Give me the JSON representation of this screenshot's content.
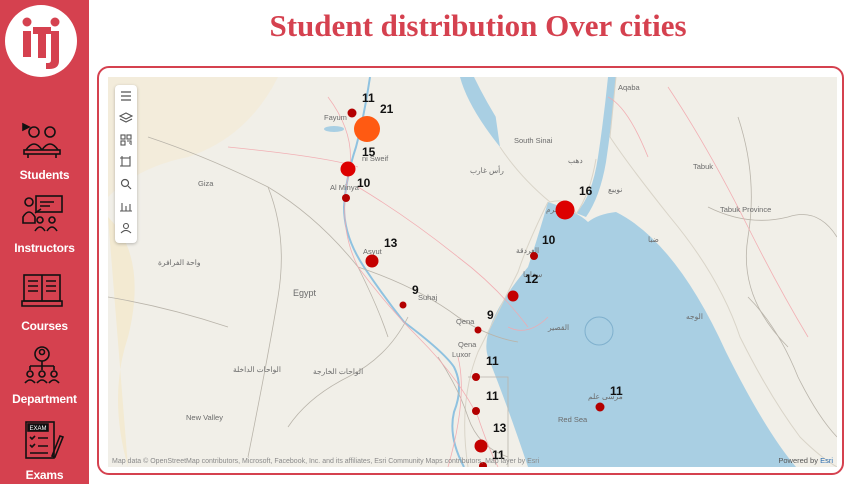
{
  "page": {
    "title": "Student distribution Over cities"
  },
  "sidebar": {
    "logo_icon": "iti-logo",
    "items": [
      {
        "label": "Students",
        "icon": "students-icon"
      },
      {
        "label": "Instructors",
        "icon": "instructors-icon"
      },
      {
        "label": "Courses",
        "icon": "courses-icon"
      },
      {
        "label": "Department",
        "icon": "department-icon"
      },
      {
        "label": "Exams",
        "icon": "exams-icon",
        "icon_text": "EXAM"
      }
    ]
  },
  "map": {
    "toolbar": [
      "menu-icon",
      "layers-icon",
      "qr-icon",
      "select-rectangle-icon",
      "zoom-icon",
      "bar-chart-icon",
      "person-icon"
    ],
    "place_labels": {
      "fayum": "Fayum",
      "beni_suef": "ni Sweif",
      "al_minya": "Al Minya",
      "giza": "Giza",
      "egypt": "Egypt",
      "wahat_farafra": "واحة الفرافرة",
      "asyut": "Asyut",
      "suhaj": "Suhaj",
      "qena": "Qena",
      "qena2": "Qena",
      "luxor": "Luxor",
      "wahat_dakhla": "الواحات الداخلة",
      "wahat_kharga": "الواحات الخارجة",
      "new_valley": "New Valley",
      "aqaba": "Aqaba",
      "south_sinai": "South Sinai",
      "ras_gharib": "رأس غارب",
      "dahab": "دهب",
      "tabuk": "Tabuk",
      "tabuk_province": "Tabuk Province",
      "sharm": "شرم",
      "nuwaiba": "نويبع",
      "ghardaqa": "الغردقة",
      "safaga": "سفاجا",
      "qusair": "القصير",
      "wajh": "الوجه",
      "red_sea": "Red Sea",
      "marsa_alam": "مرسى علم",
      "duba": "ضبا"
    },
    "bubbles": [
      {
        "value": "21",
        "color": "#ff5a12"
      },
      {
        "value": "11",
        "color": "#b30000"
      },
      {
        "value": "15",
        "color": "#dd0000"
      },
      {
        "value": "10",
        "color": "#b30000"
      },
      {
        "value": "13",
        "color": "#c40000"
      },
      {
        "value": "9",
        "color": "#b30000"
      },
      {
        "value": "9",
        "color": "#b30000"
      },
      {
        "value": "11",
        "color": "#b30000"
      },
      {
        "value": "11",
        "color": "#b30000"
      },
      {
        "value": "13",
        "color": "#c40000"
      },
      {
        "value": "11",
        "color": "#b30000"
      },
      {
        "value": "16",
        "color": "#dd0000"
      },
      {
        "value": "10",
        "color": "#b30000"
      },
      {
        "value": "12",
        "color": "#c40000"
      },
      {
        "value": "11",
        "color": "#b30000"
      }
    ],
    "attribution": "Map data © OpenStreetMap contributors, Microsoft, Facebook, Inc. and its affiliates, Esri Community Maps contributors, Map layer by Esri",
    "powered_by_prefix": "Powered by",
    "powered_by_brand": "Esri"
  },
  "colors": {
    "accent": "#d5414f",
    "water": "#a9cfe3",
    "land": "#f1efe8"
  }
}
